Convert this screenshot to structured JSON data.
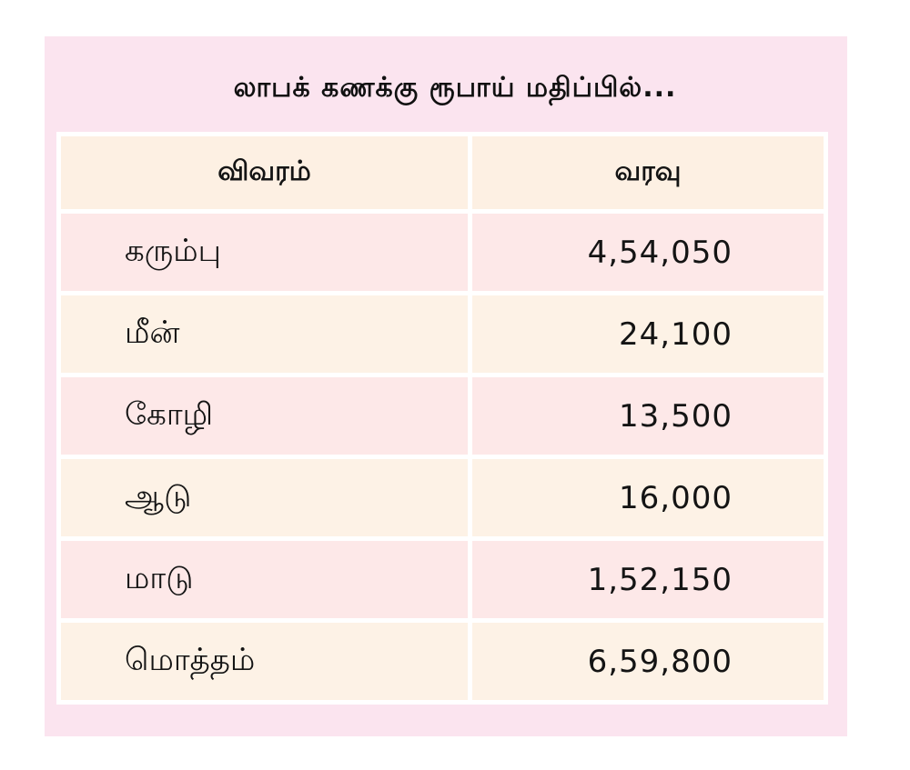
{
  "title": "லாபக் கணக்கு ரூபாய் மதிப்பில்...",
  "headers": {
    "item": "விவரம்",
    "income": "வரவு"
  },
  "rows": [
    {
      "item": "கரும்பு",
      "income": "4,54,050"
    },
    {
      "item": "மீன்",
      "income": "24,100"
    },
    {
      "item": "கோழி",
      "income": "13,500"
    },
    {
      "item": "ஆடு",
      "income": "16,000"
    },
    {
      "item": "மாடு",
      "income": "1,52,150"
    },
    {
      "item": "மொத்தம்",
      "income": "6,59,800"
    }
  ],
  "colors": {
    "panel": "#fbe4ef",
    "header_cell": "#fdf0e3",
    "row_pink": "#fde8e8",
    "row_cream": "#fdf2e6"
  }
}
